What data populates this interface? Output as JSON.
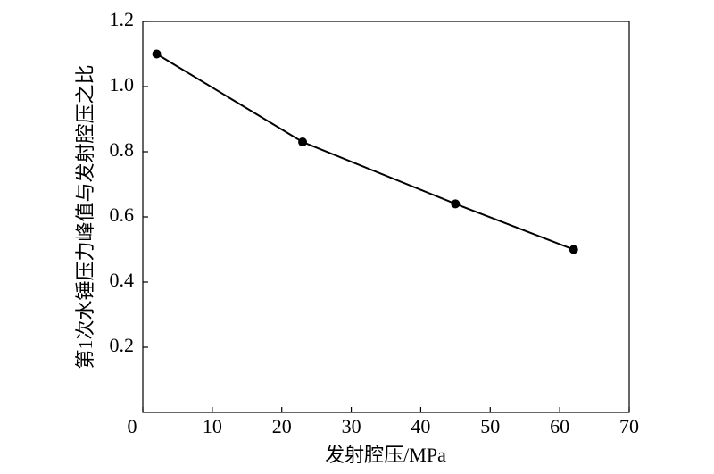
{
  "chart_data": {
    "type": "line",
    "x_label": "发射腔压/MPa",
    "y_label": "第1次水锤压力峰值与发射腔压之比",
    "x": [
      2,
      23,
      45,
      62
    ],
    "series": [
      {
        "name": null,
        "color": "#000000",
        "values": [
          1.1,
          0.83,
          0.64,
          0.5
        ]
      }
    ],
    "xlim": [
      0,
      70
    ],
    "xticks": [
      0,
      10,
      20,
      30,
      40,
      50,
      60,
      70
    ],
    "ylim": [
      0,
      1.2
    ],
    "yticks": [
      0.2,
      0.4,
      0.6,
      0.8,
      {
        "value": 1,
        "label": "1.0"
      },
      1.2
    ],
    "grid": false
  }
}
